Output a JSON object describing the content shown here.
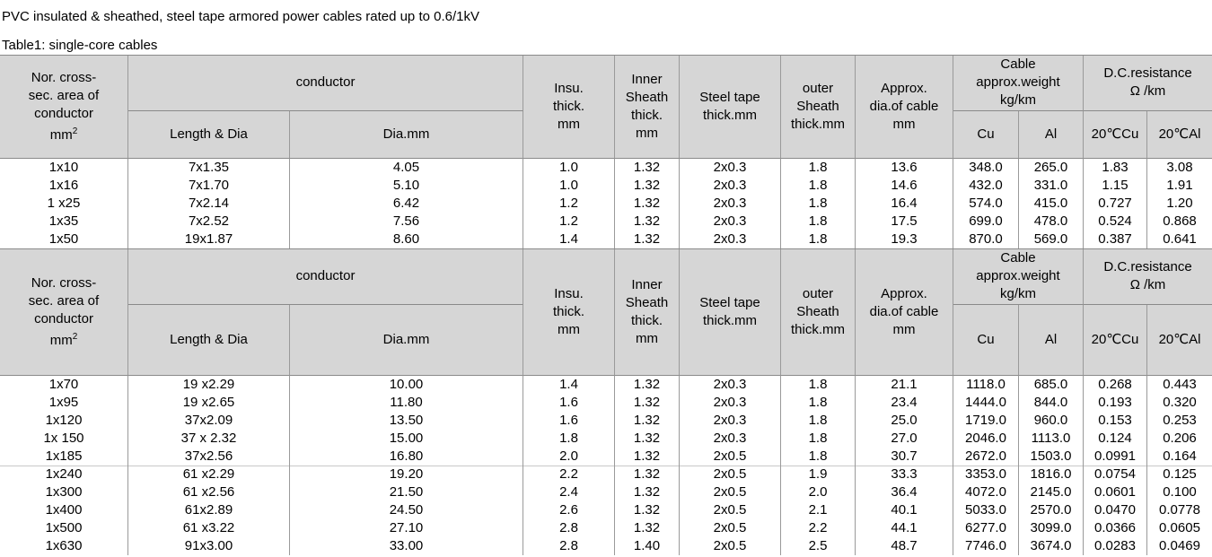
{
  "header": {
    "title": "PVC insulated & sheathed, steel tape armored power cables rated up to 0.6/1kV",
    "subtitle": "Table1: single-core cables"
  },
  "sections": [
    {
      "header": {
        "area": [
          "Nor. cross-",
          "sec. area of",
          "conductor"
        ],
        "area_unit": "mm",
        "area_unit_sup": "2",
        "conductor": "conductor",
        "length_dia": "Length & Dia",
        "dia": "Dia.mm",
        "insu": [
          "Insu.",
          "thick.",
          "mm"
        ],
        "inner": [
          "Inner",
          "Sheath",
          "thick.",
          "mm"
        ],
        "steel": [
          "Steel tape",
          "thick.mm"
        ],
        "outer": [
          "outer",
          "Sheath",
          "thick.mm"
        ],
        "approx": [
          "Approx.",
          "dia.of cable",
          "mm"
        ],
        "weight": [
          "Cable",
          "approx.weight",
          "kg/km"
        ],
        "cu": "Cu",
        "al": "Al",
        "resistance": [
          "D.C.resistance",
          "Ω /km"
        ],
        "r_cu": "20℃Cu",
        "r_al": "20℃Al"
      },
      "row_groups": [
        [
          [
            "1x10",
            "7x1.35",
            "4.05",
            "1.0",
            "1.32",
            "2x0.3",
            "1.8",
            "13.6",
            "348.0",
            "265.0",
            "1.83",
            "3.08"
          ],
          [
            "1x16",
            "7x1.70",
            "5.10",
            "1.0",
            "1.32",
            "2x0.3",
            "1.8",
            "14.6",
            "432.0",
            "331.0",
            "1.15",
            "1.91"
          ],
          [
            "1 x25",
            "7x2.14",
            "6.42",
            "1.2",
            "1.32",
            "2x0.3",
            "1.8",
            "16.4",
            "574.0",
            "415.0",
            "0.727",
            "1.20"
          ],
          [
            "1x35",
            "7x2.52",
            "7.56",
            "1.2",
            "1.32",
            "2x0.3",
            "1.8",
            "17.5",
            "699.0",
            "478.0",
            "0.524",
            "0.868"
          ],
          [
            "1x50",
            "19x1.87",
            "8.60",
            "1.4",
            "1.32",
            "2x0.3",
            "1.8",
            "19.3",
            "870.0",
            "569.0",
            "0.387",
            "0.641"
          ]
        ]
      ]
    },
    {
      "header": {
        "area": [
          "Nor. cross-",
          "sec. area of",
          "conductor"
        ],
        "area_unit": "mm",
        "area_unit_sup": "2",
        "conductor": "conductor",
        "length_dia": "Length & Dia",
        "dia": "Dia.mm",
        "insu": [
          "Insu.",
          "thick.",
          "mm"
        ],
        "inner": [
          "Inner",
          "Sheath",
          "thick.",
          "mm"
        ],
        "steel": [
          "Steel tape",
          "thick.mm"
        ],
        "outer": [
          "outer",
          "Sheath",
          "thick.mm"
        ],
        "approx": [
          "Approx.",
          "dia.of cable",
          "mm"
        ],
        "weight": [
          "Cable",
          "approx.weight",
          "kg/km"
        ],
        "cu": "Cu",
        "al": "Al",
        "resistance": [
          "D.C.resistance",
          "Ω /km"
        ],
        "r_cu": "20℃Cu",
        "r_al": "20℃Al"
      },
      "row_groups": [
        [
          [
            "1x70",
            "19 x2.29",
            "10.00",
            "1.4",
            "1.32",
            "2x0.3",
            "1.8",
            "21.1",
            "1118.0",
            "685.0",
            "0.268",
            "0.443"
          ],
          [
            "1x95",
            "19 x2.65",
            "11.80",
            "1.6",
            "1.32",
            "2x0.3",
            "1.8",
            "23.4",
            "1444.0",
            "844.0",
            "0.193",
            "0.320"
          ],
          [
            "1x120",
            "37x2.09",
            "13.50",
            "1.6",
            "1.32",
            "2x0.3",
            "1.8",
            "25.0",
            "1719.0",
            "960.0",
            "0.153",
            "0.253"
          ],
          [
            "1x 150",
            "37 x 2.32",
            "15.00",
            "1.8",
            "1.32",
            "2x0.3",
            "1.8",
            "27.0",
            "2046.0",
            "1113.0",
            "0.124",
            "0.206"
          ],
          [
            "1x185",
            "37x2.56",
            "16.80",
            "2.0",
            "1.32",
            "2x0.5",
            "1.8",
            "30.7",
            "2672.0",
            "1503.0",
            "0.0991",
            "0.164"
          ]
        ],
        [
          [
            "1x240",
            "61 x2.29",
            "19.20",
            "2.2",
            "1.32",
            "2x0.5",
            "1.9",
            "33.3",
            "3353.0",
            "1816.0",
            "0.0754",
            "0.125"
          ],
          [
            "1x300",
            "61 x2.56",
            "21.50",
            "2.4",
            "1.32",
            "2x0.5",
            "2.0",
            "36.4",
            "4072.0",
            "2145.0",
            "0.0601",
            "0.100"
          ],
          [
            "1x400",
            "61x2.89",
            "24.50",
            "2.6",
            "1.32",
            "2x0.5",
            "2.1",
            "40.1",
            "5033.0",
            "2570.0",
            "0.0470",
            "0.0778"
          ],
          [
            "1x500",
            "61 x3.22",
            "27.10",
            "2.8",
            "1.32",
            "2x0.5",
            "2.2",
            "44.1",
            "6277.0",
            "3099.0",
            "0.0366",
            "0.0605"
          ],
          [
            "1x630",
            "91x3.00",
            "33.00",
            "2.8",
            "1.40",
            "2x0.5",
            "2.5",
            "48.7",
            "7746.0",
            "3674.0",
            "0.0283",
            "0.0469"
          ]
        ]
      ]
    }
  ]
}
